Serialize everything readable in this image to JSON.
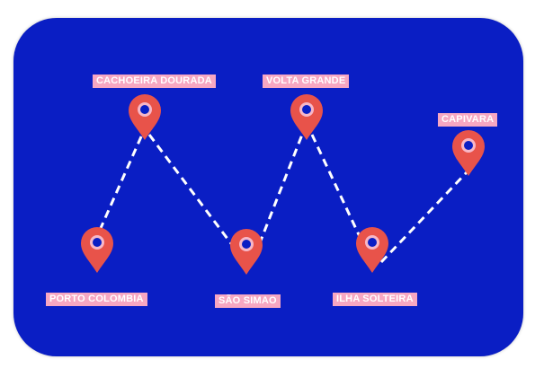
{
  "colors": {
    "background": "#0a1ec4",
    "pin": "#e8534a",
    "pin_dot": "#0a1ec4",
    "label_bg": "#f7a7c2",
    "label_text": "#ffffff",
    "route_line": "#ffffff"
  },
  "locations": [
    {
      "id": "porto",
      "name": "PORTO COLOMBIA",
      "icon": "map-pin-icon"
    },
    {
      "id": "cachoeira",
      "name": "CACHOEIRA DOURADA",
      "icon": "map-pin-icon"
    },
    {
      "id": "saosimao",
      "name": "SÃO SIMAO",
      "icon": "map-pin-icon"
    },
    {
      "id": "volta",
      "name": "VOLTA GRANDE",
      "icon": "map-pin-icon"
    },
    {
      "id": "ilha",
      "name": "ILHA SOLTEIRA",
      "icon": "map-pin-icon"
    },
    {
      "id": "capivara",
      "name": "CAPIVARA",
      "icon": "map-pin-icon"
    }
  ],
  "route": {
    "style": "dashed",
    "order": [
      "porto",
      "cachoeira",
      "saosimao",
      "volta",
      "ilha",
      "capivara"
    ]
  }
}
